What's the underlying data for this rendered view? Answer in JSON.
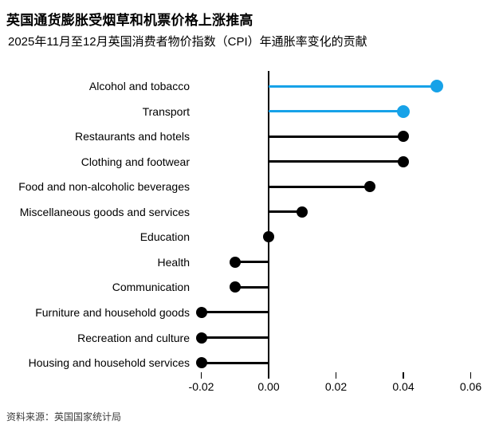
{
  "source": "资料来源：英国国家统计局",
  "colors": {
    "highlight_blue": "#17a2e8",
    "default_black": "#000000",
    "source_text": "#3c3c3c",
    "background": "#ffffff"
  },
  "chart_data": {
    "type": "lollipop",
    "orientation": "horizontal",
    "title": "英国通货膨胀受烟草和机票价格上涨推高",
    "subtitle": "2025年11月至12月英国消费者物价指数（CPI）年通胀率变化的贡献",
    "categories": [
      "Alcohol and tobacco",
      "Transport",
      "Restaurants and hotels",
      "Clothing and footwear",
      "Food and non-alcoholic beverages",
      "Miscellaneous goods and services",
      "Education",
      "Health",
      "Communication",
      "Furniture and household goods",
      "Recreation and culture",
      "Housing and household services"
    ],
    "values": [
      0.05,
      0.04,
      0.04,
      0.04,
      0.03,
      0.01,
      0.0,
      -0.01,
      -0.01,
      -0.02,
      -0.02,
      -0.02
    ],
    "highlighted": [
      true,
      true,
      false,
      false,
      false,
      false,
      false,
      false,
      false,
      false,
      false,
      false
    ],
    "xlabel": "",
    "ylabel": "",
    "xlim": [
      -0.028,
      0.066
    ],
    "x_ticks": [
      -0.02,
      0.0,
      0.02,
      0.04,
      0.06
    ],
    "x_tick_labels": [
      "-0.02",
      "0.00",
      "0.02",
      "0.04",
      "0.06"
    ],
    "grid": false,
    "legend": false,
    "zero_baseline": true
  }
}
